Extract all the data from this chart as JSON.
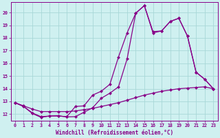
{
  "xlabel": "Windchill (Refroidissement éolien,°C)",
  "background_color": "#cff0f0",
  "grid_color": "#a8d8d8",
  "line_color": "#880088",
  "xlim": [
    -0.5,
    23.5
  ],
  "ylim": [
    11.5,
    20.8
  ],
  "yticks": [
    12,
    13,
    14,
    15,
    16,
    17,
    18,
    19,
    20
  ],
  "xticks": [
    0,
    1,
    2,
    3,
    4,
    5,
    6,
    7,
    8,
    9,
    10,
    11,
    12,
    13,
    14,
    15,
    16,
    17,
    18,
    19,
    20,
    21,
    22,
    23
  ],
  "series1_x": [
    0,
    1,
    2,
    3,
    4,
    5,
    6,
    7,
    8,
    9,
    10,
    11,
    12,
    13,
    14,
    15,
    16,
    17,
    18,
    19,
    20,
    21,
    22,
    23
  ],
  "series1_y": [
    12.9,
    12.65,
    12.4,
    12.2,
    12.2,
    12.2,
    12.2,
    12.25,
    12.35,
    12.45,
    12.6,
    12.75,
    12.9,
    13.1,
    13.3,
    13.5,
    13.65,
    13.8,
    13.9,
    14.0,
    14.05,
    14.1,
    14.15,
    14.0
  ],
  "series2_x": [
    0,
    1,
    2,
    3,
    4,
    5,
    6,
    7,
    8,
    9,
    10,
    11,
    12,
    13,
    14,
    15,
    16,
    17,
    18,
    19,
    20,
    21,
    22,
    23
  ],
  "series2_y": [
    12.9,
    12.6,
    12.1,
    11.8,
    11.85,
    11.85,
    11.8,
    12.6,
    12.65,
    13.5,
    13.8,
    14.35,
    16.5,
    18.4,
    19.95,
    20.55,
    18.5,
    18.55,
    19.3,
    19.55,
    18.15,
    15.3,
    14.75,
    14.0
  ],
  "series3_x": [
    0,
    1,
    2,
    3,
    4,
    5,
    6,
    7,
    8,
    9,
    10,
    11,
    12,
    13,
    14,
    15,
    16,
    17,
    18,
    19,
    20,
    21,
    22,
    23
  ],
  "series3_y": [
    12.9,
    12.6,
    12.05,
    11.75,
    11.85,
    11.88,
    11.78,
    11.8,
    12.15,
    12.5,
    13.25,
    13.65,
    14.15,
    16.35,
    19.95,
    20.55,
    18.4,
    18.55,
    19.3,
    19.55,
    18.15,
    15.3,
    14.75,
    14.0
  ],
  "marker_size": 2.5,
  "linewidth": 0.9,
  "xlabel_fontsize": 5.5,
  "tick_fontsize": 4.8
}
